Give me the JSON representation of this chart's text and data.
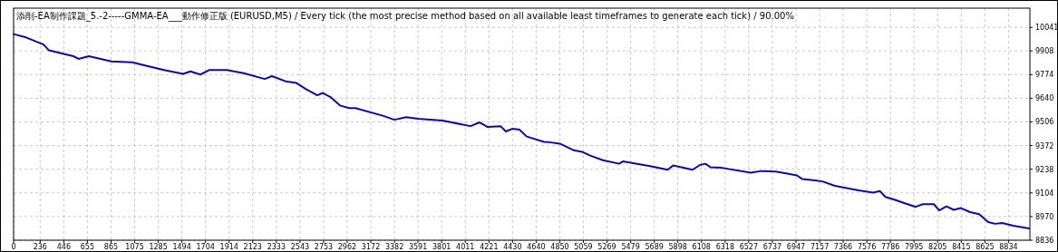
{
  "chart_data": {
    "type": "line",
    "title": "添削-EA制作課題_5.-2-----GMMA-EA___動作修正版 (EURUSD,M5) / Every tick (the most precise method based on all available least timeframes to generate each tick) / 90.00%",
    "x": [
      0,
      111,
      266,
      314,
      531,
      576,
      668,
      869,
      1055,
      1151,
      1336,
      1505,
      1570,
      1658,
      1739,
      1892,
      2044,
      2230,
      2294,
      2415,
      2512,
      2600,
      2697,
      2745,
      2818,
      2898,
      2979,
      3035,
      3284,
      3381,
      3486,
      3590,
      3808,
      4057,
      4138,
      4210,
      4323,
      4371,
      4428,
      4492,
      4556,
      4709,
      4754,
      4850,
      4975,
      5055,
      5120,
      5233,
      5377,
      5410,
      5651,
      5808,
      5856,
      6029,
      6094,
      6142,
      6190,
      6287,
      6545,
      6641,
      6766,
      6859,
      6955,
      7004,
      7116,
      7181,
      7293,
      7503,
      7631,
      7693,
      7741,
      7821,
      7913,
      8010,
      8074,
      8171,
      8219,
      8283,
      8348,
      8412,
      8493,
      8573,
      8654,
      8715,
      8779,
      8875,
      9016
    ],
    "values": [
      10003,
      9984,
      9944,
      9911,
      9878,
      9863,
      9878,
      9848,
      9843,
      9828,
      9800,
      9778,
      9792,
      9774,
      9800,
      9800,
      9782,
      9749,
      9765,
      9736,
      9726,
      9690,
      9657,
      9670,
      9645,
      9599,
      9584,
      9584,
      9540,
      9518,
      9533,
      9524,
      9513,
      9482,
      9503,
      9477,
      9482,
      9452,
      9467,
      9462,
      9423,
      9393,
      9391,
      9383,
      9345,
      9335,
      9315,
      9289,
      9269,
      9282,
      9256,
      9235,
      9259,
      9235,
      9262,
      9269,
      9249,
      9246,
      9218,
      9228,
      9225,
      9215,
      9203,
      9182,
      9175,
      9169,
      9144,
      9118,
      9106,
      9114,
      9081,
      9066,
      9045,
      9025,
      9040,
      9040,
      9005,
      9028,
      9008,
      9018,
      8995,
      8984,
      8939,
      8929,
      8934,
      8918,
      8903
    ],
    "color": "#0a0aa8",
    "xlim": [
      0,
      9024
    ],
    "ylim": [
      8836,
      10150
    ],
    "xticks": [
      0,
      236,
      446,
      655,
      865,
      1075,
      1285,
      1494,
      1704,
      1914,
      2123,
      2333,
      2543,
      2753,
      2962,
      3172,
      3382,
      3591,
      3801,
      4011,
      4221,
      4430,
      4640,
      4850,
      5059,
      5269,
      5479,
      5689,
      5898,
      6108,
      6318,
      6527,
      6737,
      6947,
      7157,
      7366,
      7576,
      7786,
      7995,
      8205,
      8415,
      8625,
      8834
    ],
    "yticks": [
      8836,
      8970,
      9104,
      9238,
      9372,
      9506,
      9640,
      9774,
      9908,
      10041
    ],
    "grid": true
  }
}
